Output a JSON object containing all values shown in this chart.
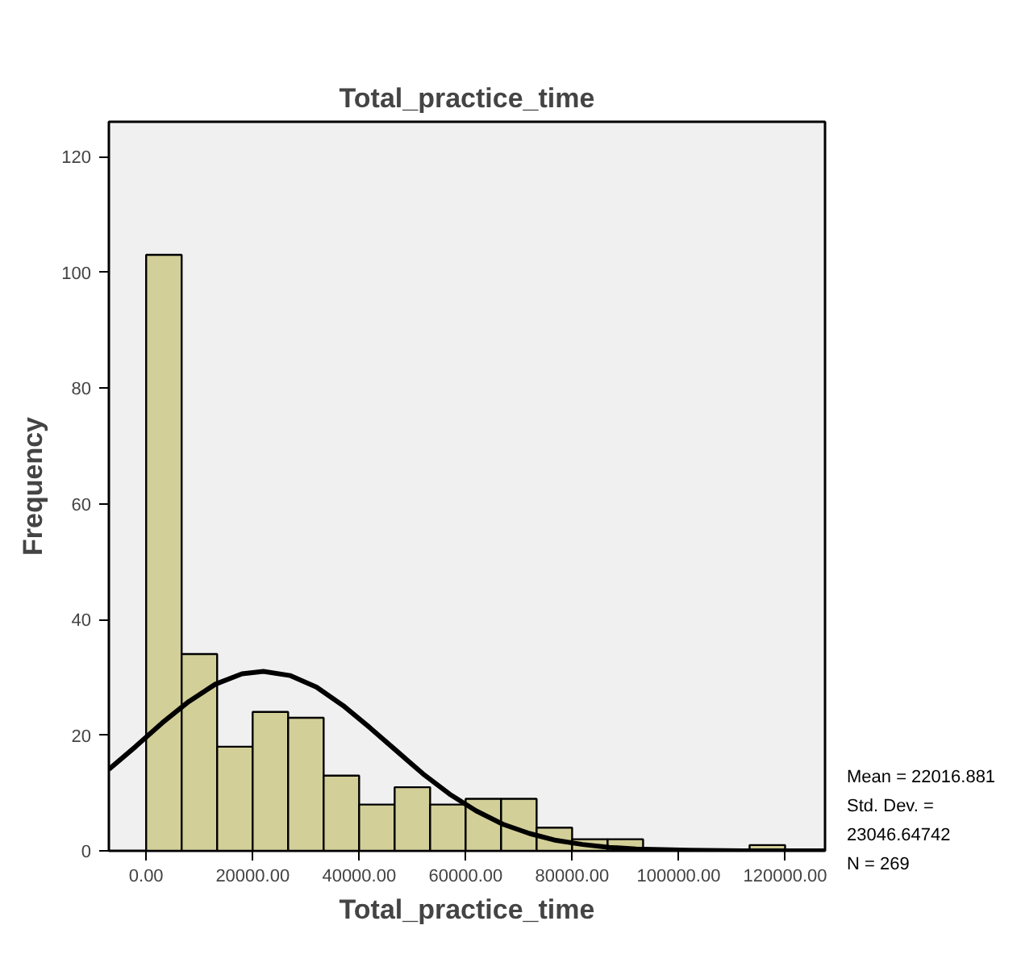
{
  "chart_data": {
    "type": "histogram",
    "title": "Total_practice_time",
    "xlabel": "Total_practice_time",
    "ylabel": "Frequency",
    "bins": [
      0,
      6666.67,
      13333.33,
      20000,
      26666.67,
      33333.33,
      40000,
      46666.67,
      53333.33,
      60000,
      66666.67,
      73333.33,
      80000,
      86666.67,
      93333.33,
      100000,
      106666.67,
      113333.33,
      120000
    ],
    "values": [
      103,
      34,
      18,
      24,
      23,
      13,
      8,
      11,
      8,
      9,
      9,
      4,
      2,
      2,
      0,
      0,
      0,
      1
    ],
    "color": "#d3cf98",
    "series": [
      {
        "type": "line",
        "color": "#000000",
        "x": [
          -7000,
          -2000,
          3000,
          8000,
          13000,
          18000,
          22017,
          27000,
          32000,
          37000,
          42000,
          47000,
          52000,
          57000,
          62000,
          67000,
          72000,
          77000,
          82000,
          87000,
          92000,
          97000,
          102000,
          112000,
          122000,
          127500
        ],
        "values": [
          14.1,
          18.0,
          22.1,
          25.8,
          28.8,
          30.6,
          31.0,
          30.3,
          28.3,
          25.1,
          21.3,
          17.3,
          13.3,
          9.8,
          6.9,
          4.6,
          3.0,
          1.8,
          1.1,
          0.6,
          0.3,
          0.2,
          0.1,
          0.0,
          0.0,
          0.0
        ]
      }
    ],
    "xlim": [
      -7000,
      127500
    ],
    "ylim": [
      0,
      126
    ],
    "xticks": [
      {
        "value": 0,
        "label": "0.00"
      },
      {
        "value": 20000,
        "label": "20000.00"
      },
      {
        "value": 40000,
        "label": "40000.00"
      },
      {
        "value": 60000,
        "label": "60000.00"
      },
      {
        "value": 80000,
        "label": "80000.00"
      },
      {
        "value": 100000,
        "label": "100000.00"
      },
      {
        "value": 120000,
        "label": "120000.00"
      }
    ],
    "yticks": [
      0,
      20,
      40,
      60,
      80,
      100,
      120
    ],
    "annotations": [
      "Mean = 22016.881",
      "Std. Dev. =",
      "23046.64742",
      "N = 269"
    ],
    "grid": false
  }
}
